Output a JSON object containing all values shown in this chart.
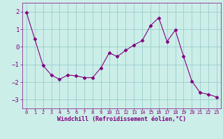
{
  "x": [
    0,
    1,
    2,
    3,
    4,
    5,
    6,
    7,
    8,
    9,
    10,
    11,
    12,
    13,
    14,
    15,
    16,
    17,
    18,
    19,
    20,
    21,
    22,
    23
  ],
  "y": [
    1.95,
    0.45,
    -1.05,
    -1.6,
    -1.85,
    -1.6,
    -1.65,
    -1.75,
    -1.75,
    -1.2,
    -0.35,
    -0.55,
    -0.2,
    0.1,
    0.35,
    1.2,
    1.65,
    0.3,
    0.95,
    -0.55,
    -1.95,
    -2.6,
    -2.7,
    -2.85
  ],
  "line_color": "#800080",
  "marker": "D",
  "marker_size": 2.5,
  "bg_color": "#cceee8",
  "grid_color": "#99cccc",
  "xlabel": "Windchill (Refroidissement éolien,°C)",
  "xlabel_color": "#800080",
  "tick_color": "#800080",
  "label_color": "#800080",
  "ylim": [
    -3.5,
    2.5
  ],
  "yticks": [
    -3,
    -2,
    -1,
    0,
    1,
    2
  ],
  "xlim": [
    -0.5,
    23.5
  ],
  "xticks": [
    0,
    1,
    2,
    3,
    4,
    5,
    6,
    7,
    8,
    9,
    10,
    11,
    12,
    13,
    14,
    15,
    16,
    17,
    18,
    19,
    20,
    21,
    22,
    23
  ],
  "spine_color": "#800080",
  "xlabel_fontsize": 6.0,
  "xtick_fontsize": 5.0,
  "ytick_fontsize": 6.5
}
